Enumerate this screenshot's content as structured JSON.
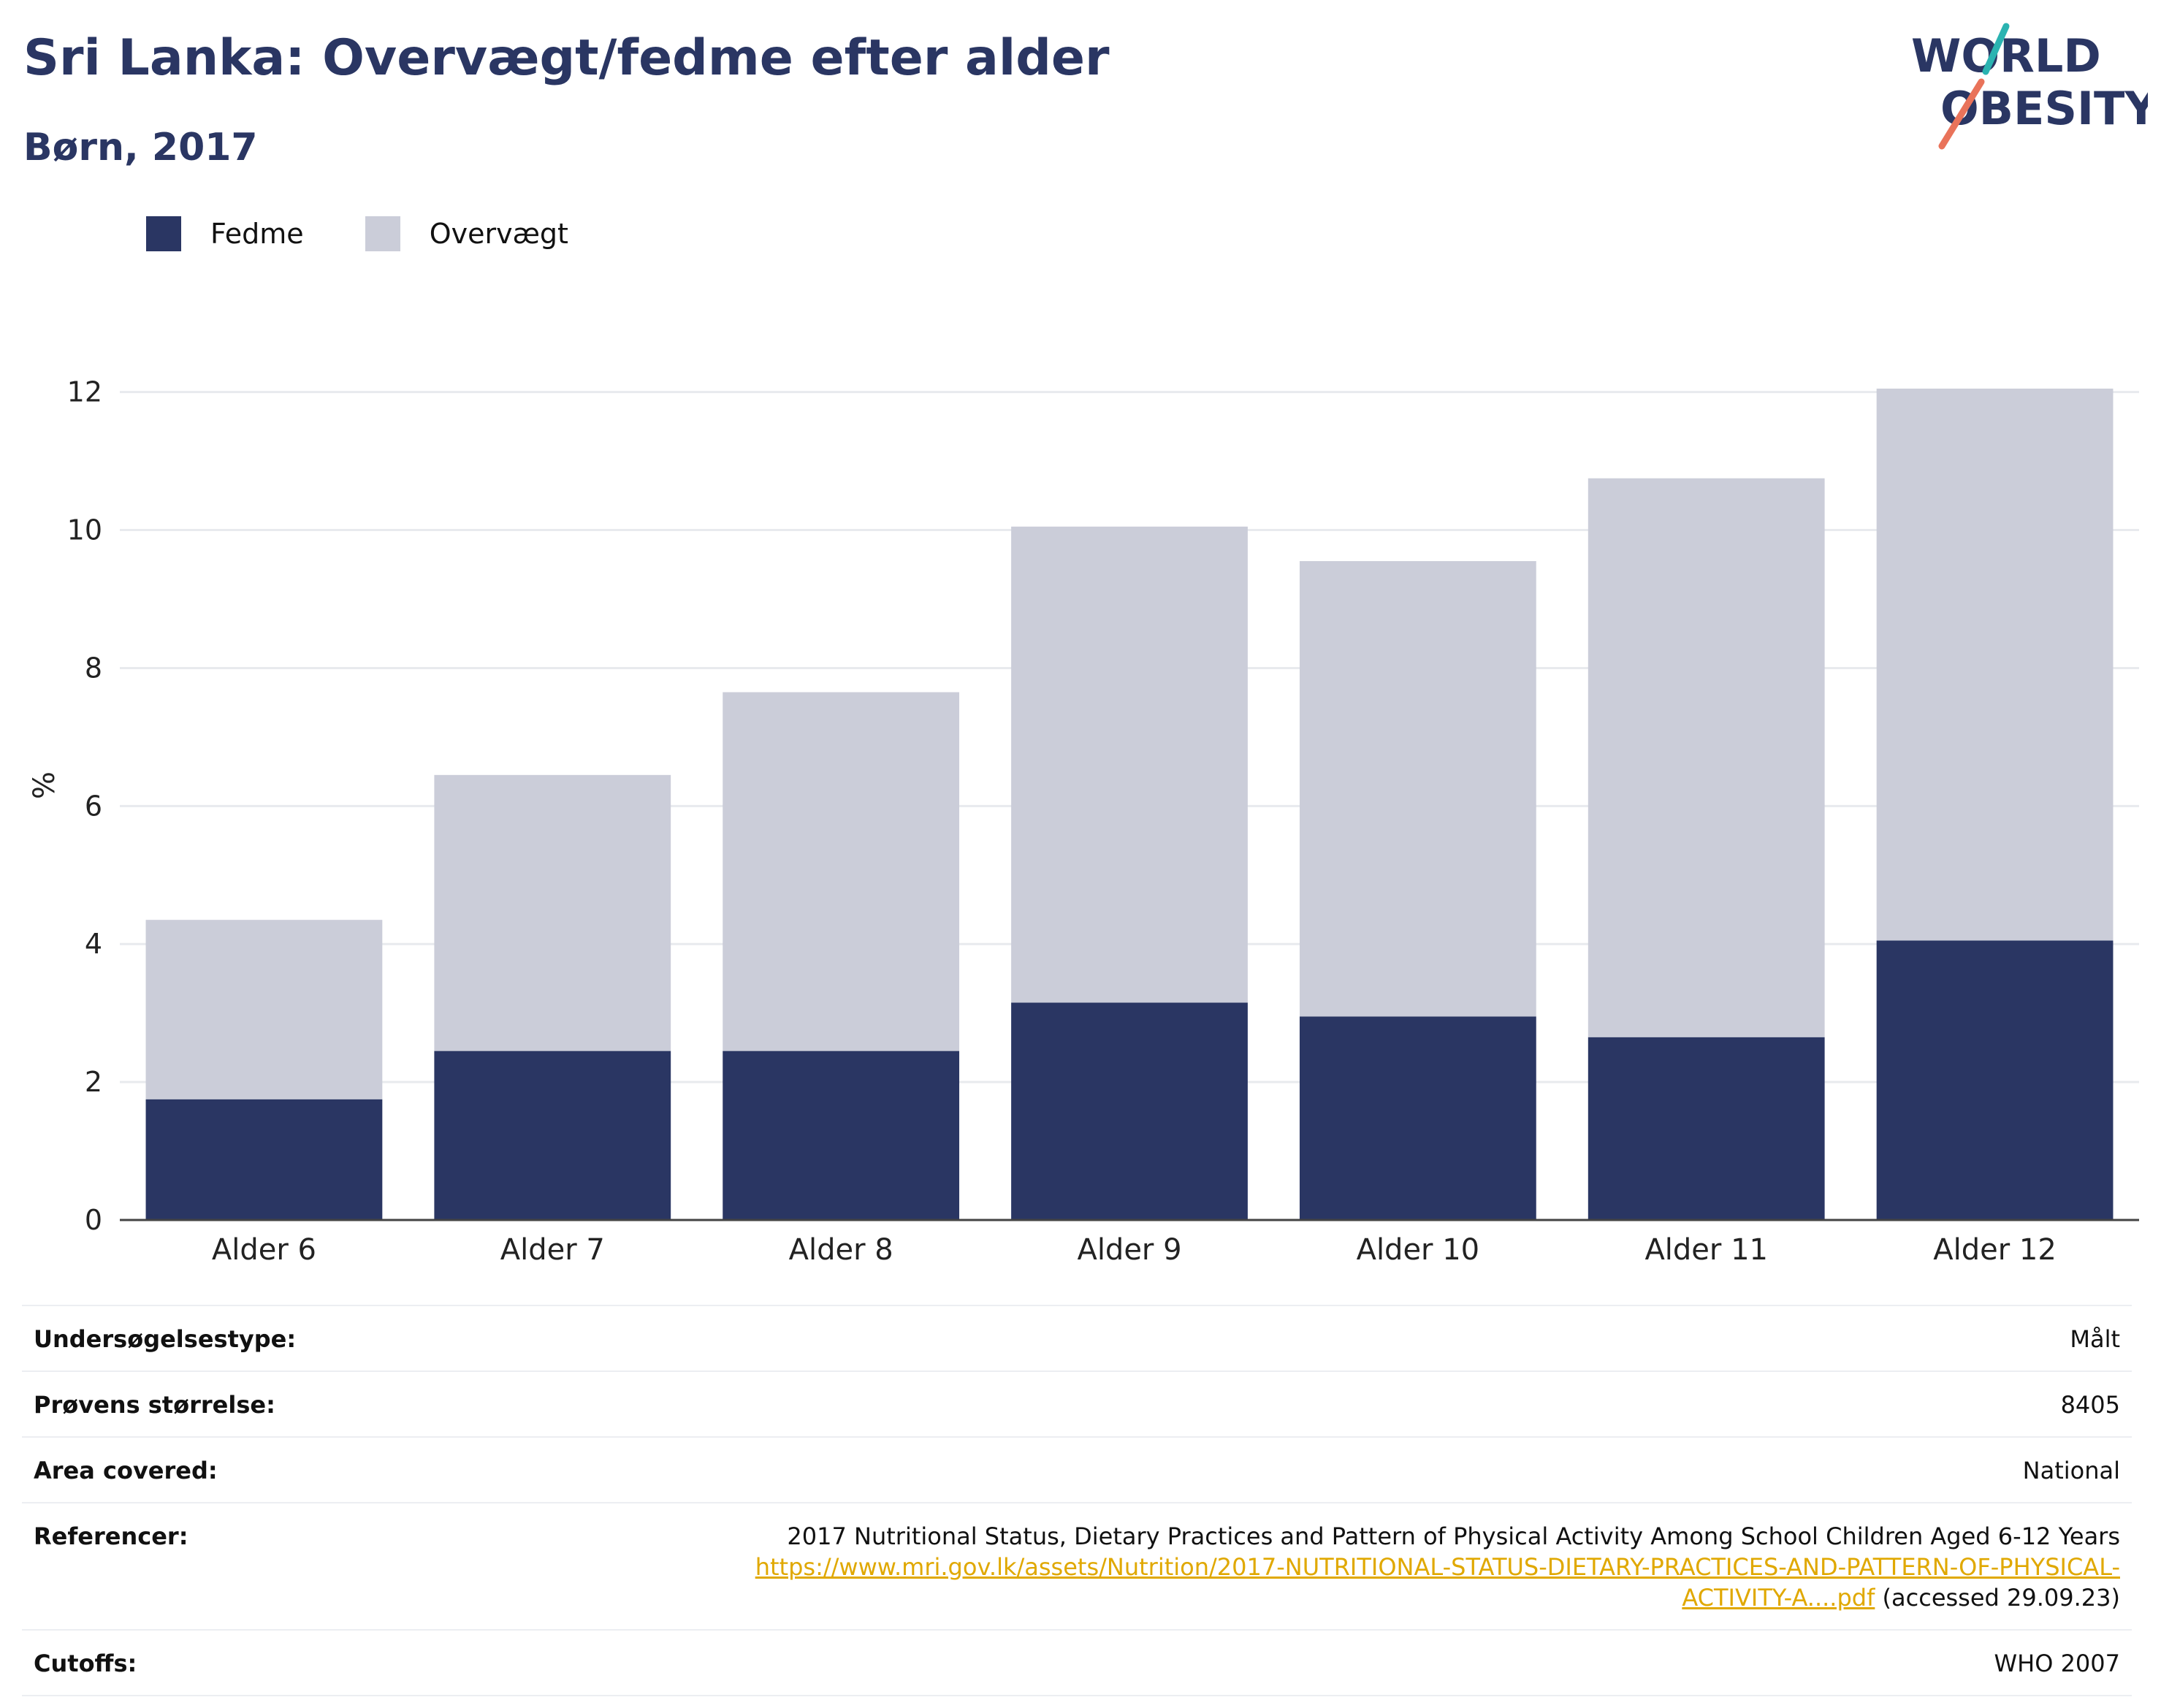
{
  "header": {
    "title": "Sri Lanka: Overvægt/fedme efter alder",
    "subtitle": "Børn, 2017",
    "logo_line1": "WORLD",
    "logo_line2": "OBESITY"
  },
  "colors": {
    "fedme": "#2a3663",
    "overvaegt": "#cbcdd9",
    "title": "#2a3663",
    "link": "#e0a800",
    "logo_teal": "#2bb3b1",
    "logo_coral": "#e9735a"
  },
  "chart_data": {
    "type": "bar",
    "stacked": true,
    "categories": [
      "Alder 6",
      "Alder 7",
      "Alder 8",
      "Alder 9",
      "Alder 10",
      "Alder 11",
      "Alder 12"
    ],
    "series": [
      {
        "name": "Fedme",
        "values": [
          1.75,
          2.45,
          2.45,
          3.15,
          2.95,
          2.65,
          4.05
        ]
      },
      {
        "name": "Overvægt",
        "values": [
          2.6,
          4.0,
          5.2,
          6.9,
          6.6,
          8.1,
          8.0
        ]
      }
    ],
    "ylabel": "%",
    "ylim": [
      0,
      12.6
    ],
    "yticks": [
      0,
      2,
      4,
      6,
      8,
      10,
      12
    ],
    "grid": true,
    "legend_position": "top-left"
  },
  "meta": {
    "rows": [
      {
        "key": "Undersøgelsestype:",
        "value": "Målt"
      },
      {
        "key": "Prøvens størrelse:",
        "value": "8405"
      },
      {
        "key": "Area covered:",
        "value": "National"
      }
    ],
    "ref_key": "Referencer:",
    "ref_title": "2017 Nutritional Status, Dietary Practices and Pattern of Physical Activity Among School Children Aged 6-12 Years",
    "ref_link_1": "https://www.mri.gov.lk/assets/Nutrition/2017-NUTRITIONAL-STATUS-DIETARY-PRACTICES-AND-PATTERN-OF-PHYSICAL-",
    "ref_link_2": "ACTIVITY-A....pdf",
    "ref_accessed": " (accessed 29.09.23)",
    "cutoffs_key": "Cutoffs:",
    "cutoffs_value": "WHO 2007"
  }
}
